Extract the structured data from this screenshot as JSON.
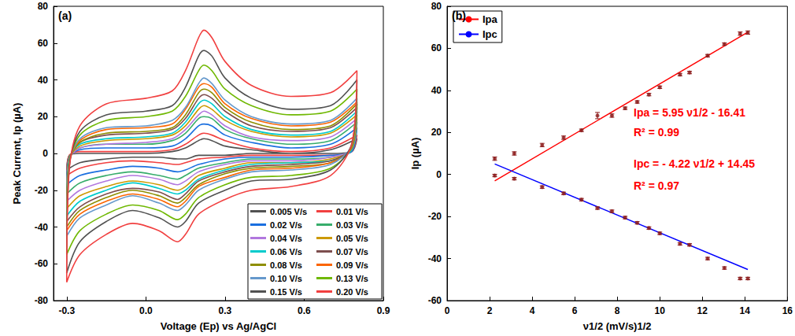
{
  "chart_data": [
    {
      "type": "line",
      "title": "(a)",
      "xlabel": "Voltage (Ep) vs Ag/AgCl",
      "ylabel": "Peak Current, Ip (µA)",
      "xlim": [
        -0.35,
        0.9
      ],
      "xticks": [
        -0.3,
        {
          "value": 0,
          "label": "0.0"
        },
        0.3,
        0.6,
        0.9
      ],
      "ylim": [
        -80,
        80
      ],
      "yticks": [
        -80,
        -60,
        -40,
        -20,
        0,
        20,
        40,
        60,
        80
      ],
      "grid": false,
      "legend": "lower right",
      "x": [
        -0.3,
        -0.29,
        -0.25,
        -0.15,
        0,
        0.1,
        0.15,
        0.2,
        0.22,
        0.25,
        0.3,
        0.4,
        0.55,
        0.7,
        0.8,
        0.78,
        0.7,
        0.55,
        0.4,
        0.3,
        0.2,
        0.15,
        0.12,
        0.05,
        -0.05,
        -0.15,
        -0.25,
        -0.3
      ],
      "series": [
        {
          "name": "0.005 V/s",
          "color": "#515151",
          "values": [
            -9,
            -1,
            0,
            0,
            0,
            1,
            3,
            7,
            8,
            7,
            4,
            2,
            0,
            2,
            8,
            1,
            0,
            0,
            0,
            -1,
            -1,
            -3,
            -3,
            -2,
            -2,
            -3,
            -5,
            -9
          ]
        },
        {
          "name": "0.01 V/s",
          "color": "#f14040",
          "values": [
            -12,
            -1,
            1,
            1,
            1,
            2,
            5,
            10,
            11,
            10,
            7,
            3,
            1,
            3,
            10,
            1,
            -1,
            -1,
            -1,
            -2,
            -3,
            -5,
            -6,
            -5,
            -4,
            -5,
            -8,
            -12
          ]
        },
        {
          "name": "0.02 V/s",
          "color": "#1a6fdf",
          "values": [
            -17,
            -2,
            2,
            3,
            3,
            4,
            8,
            15,
            16,
            15,
            10,
            6,
            3,
            5,
            14,
            1,
            -1,
            -2,
            -2,
            -3,
            -6,
            -9,
            -10,
            -8,
            -7,
            -9,
            -12,
            -17
          ]
        },
        {
          "name": "0.03 V/s",
          "color": "#37ad6b",
          "values": [
            -22,
            -2,
            3,
            5,
            5,
            7,
            11,
            19,
            20,
            19,
            13,
            8,
            5,
            7,
            17,
            2,
            -2,
            -3,
            -3,
            -5,
            -8,
            -12,
            -14,
            -12,
            -10,
            -12,
            -16,
            -22
          ]
        },
        {
          "name": "0.04 V/s",
          "color": "#b177de",
          "values": [
            -26,
            -3,
            3,
            5,
            6,
            8,
            13,
            21,
            23,
            21,
            15,
            9,
            7,
            9,
            19,
            2,
            -2,
            -4,
            -4,
            -6,
            -10,
            -15,
            -17,
            -14,
            -12,
            -15,
            -20,
            -26
          ]
        },
        {
          "name": "0.05 V/s",
          "color": "#cc9900",
          "values": [
            -30,
            -3,
            4,
            7,
            8,
            10,
            15,
            24,
            26,
            24,
            18,
            12,
            9,
            11,
            21,
            2,
            -3,
            -5,
            -5,
            -8,
            -12,
            -18,
            -20,
            -17,
            -15,
            -18,
            -23,
            -30
          ]
        },
        {
          "name": "0.06 V/s",
          "color": "#00cbcc",
          "values": [
            -34,
            -3,
            5,
            8,
            9,
            11,
            17,
            27,
            29,
            27,
            20,
            13,
            10,
            12,
            23,
            2,
            -4,
            -5,
            -6,
            -9,
            -14,
            -20,
            -22,
            -19,
            -16,
            -20,
            -26,
            -34
          ]
        },
        {
          "name": "0.07 V/s",
          "color": "#7d4e4e",
          "values": [
            -37,
            -4,
            6,
            10,
            11,
            13,
            19,
            30,
            32,
            30,
            23,
            15,
            12,
            14,
            25,
            3,
            -4,
            -6,
            -7,
            -10,
            -15,
            -22,
            -25,
            -21,
            -19,
            -22,
            -29,
            -37
          ]
        },
        {
          "name": "0.08 V/s",
          "color": "#8e8e00",
          "values": [
            -40,
            -4,
            6,
            11,
            12,
            14,
            21,
            33,
            35,
            33,
            25,
            17,
            13,
            15,
            27,
            3,
            -5,
            -7,
            -8,
            -11,
            -17,
            -24,
            -27,
            -23,
            -20,
            -24,
            -31,
            -40
          ]
        },
        {
          "name": "0.09 V/s",
          "color": "#fb6501",
          "values": [
            -42,
            -5,
            7,
            13,
            14,
            16,
            24,
            36,
            38,
            36,
            27,
            19,
            15,
            17,
            28,
            3,
            -5,
            -8,
            -9,
            -13,
            -18,
            -26,
            -29,
            -25,
            -22,
            -26,
            -33,
            -42
          ]
        },
        {
          "name": "0.10 V/s",
          "color": "#6699cc",
          "values": [
            -45,
            -5,
            8,
            14,
            15,
            18,
            25,
            38,
            41,
            38,
            29,
            20,
            16,
            18,
            30,
            4,
            -6,
            -9,
            -10,
            -14,
            -20,
            -28,
            -31,
            -27,
            -23,
            -28,
            -35,
            -45
          ]
        },
        {
          "name": "0.13 V/s",
          "color": "#6fb802",
          "values": [
            -55,
            -6,
            10,
            18,
            20,
            23,
            31,
            45,
            48,
            45,
            35,
            26,
            21,
            23,
            35,
            4,
            -8,
            -12,
            -13,
            -17,
            -24,
            -33,
            -36,
            -31,
            -28,
            -33,
            -42,
            -55
          ]
        },
        {
          "name": "0.15 V/s",
          "color": "#515151",
          "values": [
            -65,
            -7,
            12,
            21,
            23,
            26,
            36,
            53,
            56,
            53,
            41,
            30,
            24,
            26,
            40,
            5,
            -9,
            -14,
            -15,
            -20,
            -27,
            -37,
            -40,
            -35,
            -31,
            -37,
            -48,
            -65
          ]
        },
        {
          "name": "0.20 V/s",
          "color": "#f14040",
          "values": [
            -70,
            -8,
            15,
            27,
            30,
            34,
            45,
            63,
            67,
            63,
            50,
            37,
            31,
            33,
            45,
            5,
            -12,
            -18,
            -20,
            -25,
            -33,
            -44,
            -48,
            -42,
            -38,
            -44,
            -55,
            -70
          ]
        }
      ]
    },
    {
      "type": "scatter",
      "title": "(b)",
      "xlabel": "ν1/2 (mV/s)1/2",
      "ylabel": "Ip (µA)",
      "xlim": [
        0,
        16
      ],
      "xticks": [
        0,
        2,
        4,
        6,
        8,
        10,
        12,
        14,
        16
      ],
      "ylim": [
        -60,
        80
      ],
      "yticks": [
        -60,
        -40,
        -20,
        0,
        20,
        40,
        60,
        80
      ],
      "grid": false,
      "legend": "upper left",
      "marker": "circle",
      "x": [
        2.24,
        3.16,
        4.47,
        5.48,
        6.32,
        7.07,
        7.75,
        8.37,
        8.94,
        9.49,
        10,
        10.95,
        11.4,
        12.25,
        13.04,
        13.78,
        14.14
      ],
      "series": [
        {
          "color": "#8b1a1a",
          "values": [
            7.5,
            10,
            14,
            17.5,
            21,
            28,
            28,
            31.5,
            34.5,
            38,
            41.5,
            47.5,
            48.5,
            56.5,
            62,
            67,
            67.5
          ],
          "errors": [
            0.8,
            0.8,
            0.8,
            0.8,
            0.6,
            1.5,
            0.8,
            0.6,
            0.6,
            0.6,
            0.6,
            0.6,
            0.6,
            0.6,
            0.6,
            0.8,
            0.8
          ]
        },
        {
          "color": "#8b1a1a",
          "values": [
            -0.5,
            -2,
            -6,
            -9,
            -12,
            -16,
            -17.5,
            -20.5,
            -23,
            -25.5,
            -28,
            -33,
            -33.5,
            -40,
            -44.5,
            -49.5,
            -49.5
          ],
          "errors": [
            0.6,
            0.6,
            0.6,
            0.6,
            0.6,
            0.6,
            0.6,
            0.6,
            0.6,
            0.6,
            0.6,
            0.6,
            0.6,
            0.6,
            0.6,
            0.6,
            0.6
          ]
        }
      ],
      "fits": [
        {
          "name": "Ipa",
          "color": "#ff0000",
          "type": "line",
          "x": [
            2.24,
            14.14
          ],
          "values": [
            -3.08,
            67.72
          ]
        },
        {
          "name": "Ipc",
          "color": "#0000ff",
          "type": "line",
          "x": [
            2.24,
            14.14
          ],
          "values": [
            5.0,
            -45.22
          ]
        }
      ],
      "annotations": [
        {
          "text": "Ipa = 5.95 ν1/2 - 16.41",
          "color": "#ff0000"
        },
        {
          "text": "R² = 0.99",
          "color": "#ff0000"
        },
        {
          "text": "Ipc = - 4.22 ν1/2 + 14.45",
          "color": "#ff0000"
        },
        {
          "text": "R² = 0.97",
          "color": "#ff0000"
        }
      ]
    }
  ]
}
